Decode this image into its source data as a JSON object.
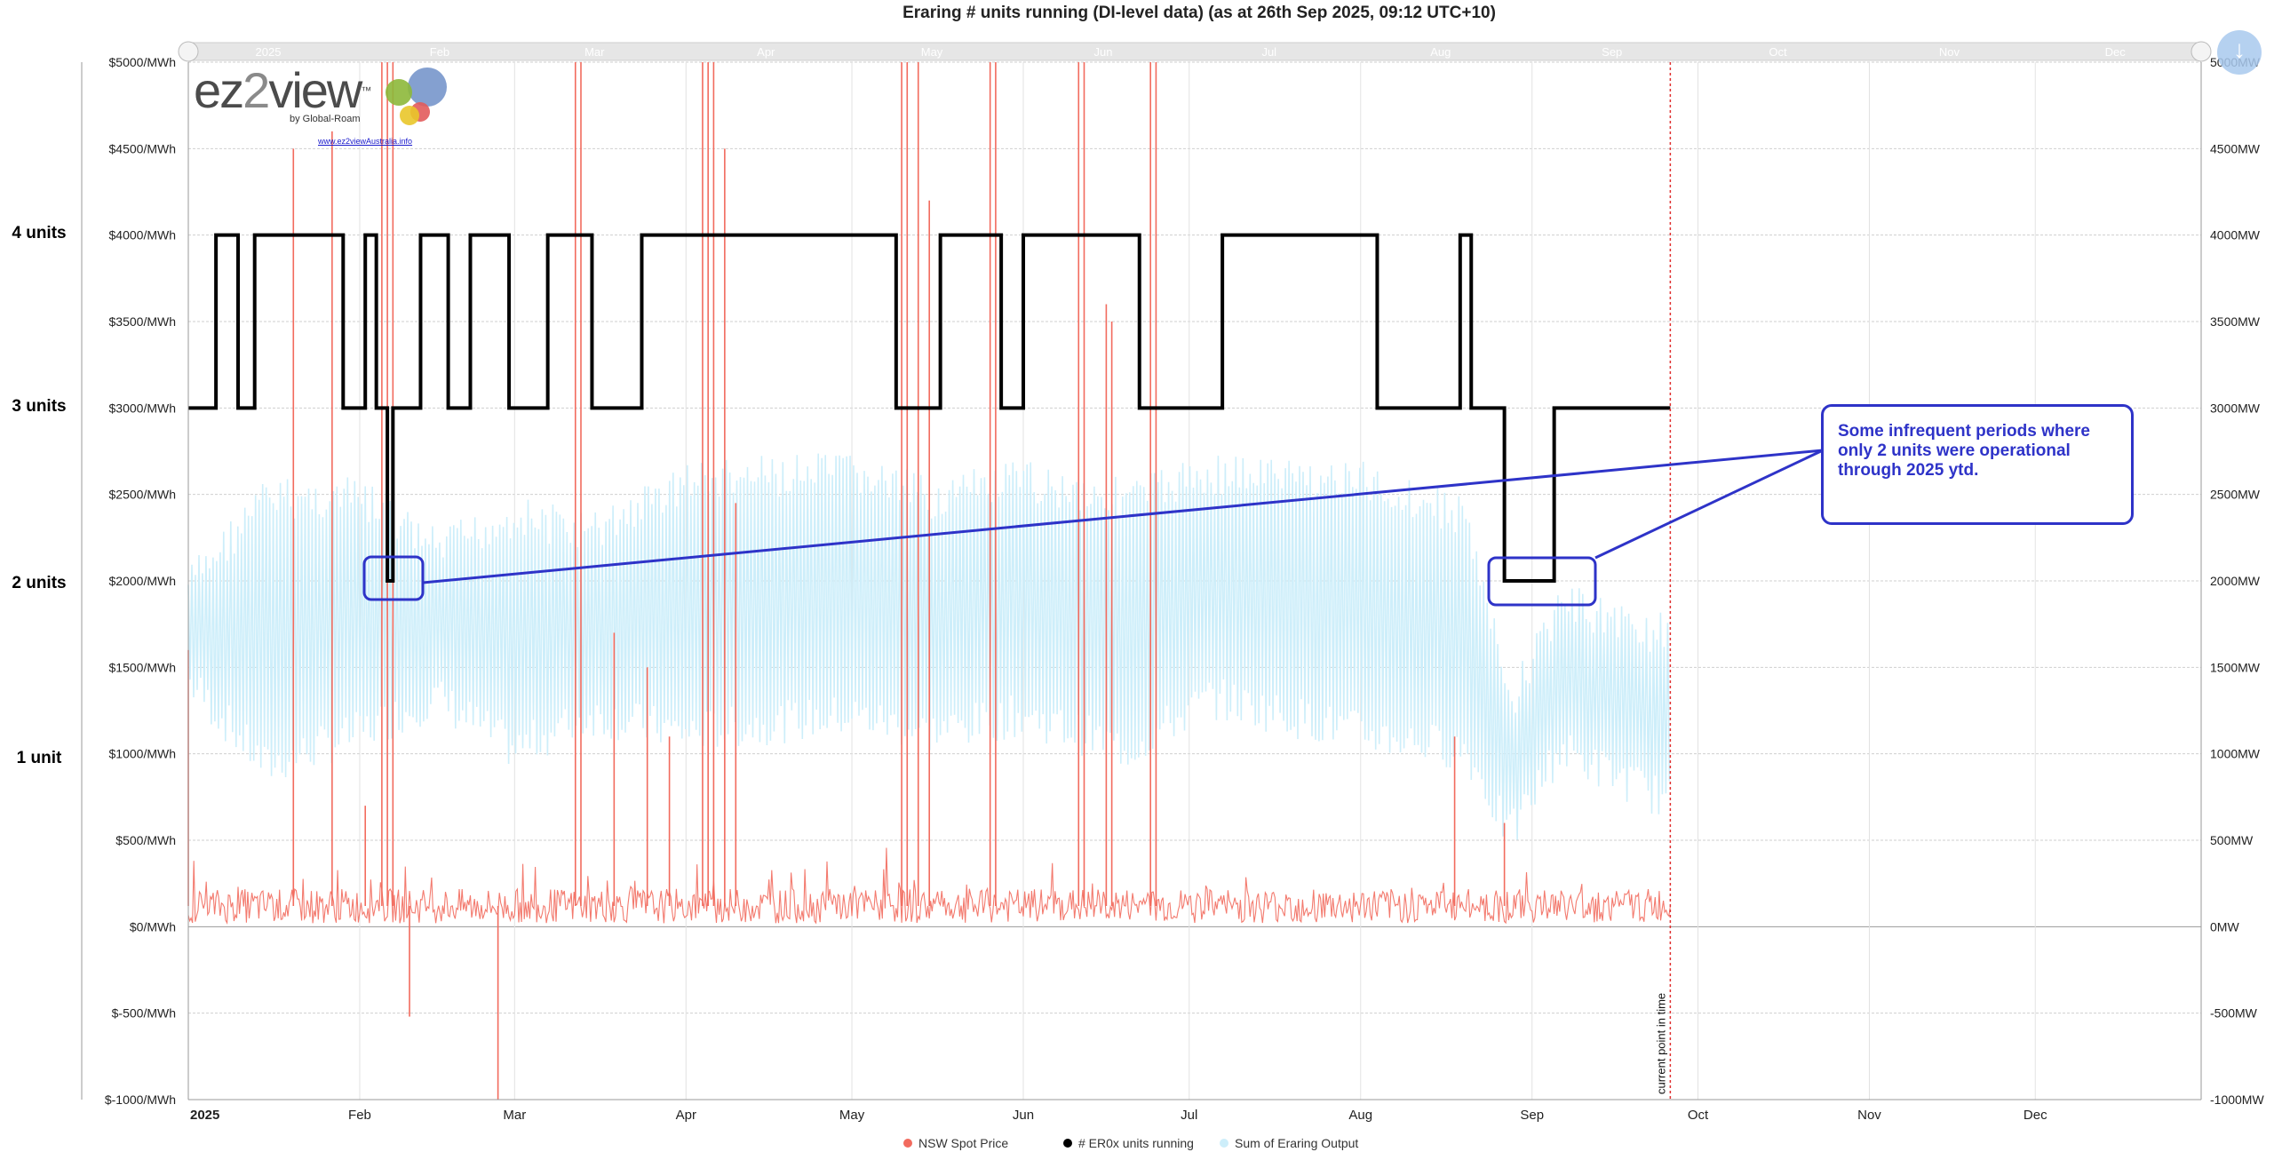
{
  "title": "Eraring # units running (DI-level data) (as at 26th Sep 2025, 09:12 UTC+10)",
  "logo": {
    "brand_a": "ez",
    "brand_b": "2",
    "brand_c": "view",
    "tm": "™",
    "byline": "by Global-Roam",
    "url": "www.ez2viewAustralia.info"
  },
  "left_unit_labels": [
    "4 units",
    "3 units",
    "2 units",
    "1 unit"
  ],
  "callout_text": "Some infrequent periods where only 2 units were operational through 2025 ytd.",
  "current_time_label": "current point in time",
  "colors": {
    "price": "#f26b5e",
    "units": "#000000",
    "output": "#cdeefa",
    "callout": "#2e33c8",
    "current_line": "#e03030"
  },
  "chart_data": {
    "type": "line",
    "title": "Eraring # units running (DI-level data) (as at 26th Sep 2025, 09:12 UTC+10)",
    "x_range": [
      "2025-01-01",
      "2025-12-31"
    ],
    "x_ticks": [
      "2025",
      "Feb",
      "Mar",
      "Apr",
      "May",
      "Jun",
      "Jul",
      "Aug",
      "Sep",
      "Oct",
      "Nov",
      "Dec"
    ],
    "navigator_ticks": [
      "2025",
      "Feb",
      "Mar",
      "Apr",
      "May",
      "Jun",
      "Jul",
      "Aug",
      "Sep",
      "Oct",
      "Nov",
      "Dec"
    ],
    "y_left": {
      "range": [
        -1000,
        5000
      ],
      "ticks": [
        "$-1000/MWh",
        "$-500/MWh",
        "$0/MWh",
        "$500/MWh",
        "$1000/MWh",
        "$1500/MWh",
        "$2000/MWh",
        "$2500/MWh",
        "$3000/MWh",
        "$3500/MWh",
        "$4000/MWh",
        "$4500/MWh",
        "$5000/MWh"
      ]
    },
    "y_right": {
      "range": [
        -1000,
        5000
      ],
      "ticks": [
        "-1000MW",
        "-500MW",
        "0MW",
        "500MW",
        "1000MW",
        "1500MW",
        "2000MW",
        "2500MW",
        "3000MW",
        "3500MW",
        "4000MW",
        "4500MW",
        "5000MW"
      ]
    },
    "grid": true,
    "legend_position": "bottom",
    "current_time": "2025-09-26",
    "series": [
      {
        "name": "NSW Spot Price",
        "units": "$/MWh",
        "baseline": 120,
        "spikes": [
          {
            "date": "2025-01-01",
            "value": 1600
          },
          {
            "date": "2025-01-20",
            "value": 4500
          },
          {
            "date": "2025-01-27",
            "value": 4600
          },
          {
            "date": "2025-02-02",
            "value": 700
          },
          {
            "date": "2025-02-05",
            "value": 5000
          },
          {
            "date": "2025-02-06",
            "value": 5000
          },
          {
            "date": "2025-02-07",
            "value": 5000
          },
          {
            "date": "2025-02-10",
            "value": -520
          },
          {
            "date": "2025-02-26",
            "value": -1000
          },
          {
            "date": "2025-03-12",
            "value": 5000
          },
          {
            "date": "2025-03-13",
            "value": 5000
          },
          {
            "date": "2025-03-19",
            "value": 1700
          },
          {
            "date": "2025-03-25",
            "value": 1500
          },
          {
            "date": "2025-03-29",
            "value": 1100
          },
          {
            "date": "2025-04-04",
            "value": 5000
          },
          {
            "date": "2025-04-05",
            "value": 5000
          },
          {
            "date": "2025-04-06",
            "value": 5000
          },
          {
            "date": "2025-04-08",
            "value": 4500
          },
          {
            "date": "2025-04-10",
            "value": 2450
          },
          {
            "date": "2025-05-10",
            "value": 5000
          },
          {
            "date": "2025-05-11",
            "value": 5000
          },
          {
            "date": "2025-05-13",
            "value": 5000
          },
          {
            "date": "2025-05-15",
            "value": 4200
          },
          {
            "date": "2025-05-26",
            "value": 5000
          },
          {
            "date": "2025-05-27",
            "value": 5000
          },
          {
            "date": "2025-06-11",
            "value": 5000
          },
          {
            "date": "2025-06-12",
            "value": 5000
          },
          {
            "date": "2025-06-16",
            "value": 3600
          },
          {
            "date": "2025-06-17",
            "value": 3500
          },
          {
            "date": "2025-06-24",
            "value": 5000
          },
          {
            "date": "2025-06-25",
            "value": 5000
          },
          {
            "date": "2025-08-18",
            "value": 1100
          },
          {
            "date": "2025-08-27",
            "value": 600
          }
        ]
      },
      {
        "name": "# ER0x units running",
        "units": "units (4 units = 4000)",
        "steps": [
          {
            "date": "2025-01-01",
            "units": 3
          },
          {
            "date": "2025-01-06",
            "units": 4
          },
          {
            "date": "2025-01-10",
            "units": 3
          },
          {
            "date": "2025-01-13",
            "units": 4
          },
          {
            "date": "2025-01-29",
            "units": 3
          },
          {
            "date": "2025-02-02",
            "units": 4
          },
          {
            "date": "2025-02-04",
            "units": 3
          },
          {
            "date": "2025-02-06",
            "units": 2
          },
          {
            "date": "2025-02-07",
            "units": 3
          },
          {
            "date": "2025-02-12",
            "units": 4
          },
          {
            "date": "2025-02-17",
            "units": 3
          },
          {
            "date": "2025-02-21",
            "units": 4
          },
          {
            "date": "2025-02-28",
            "units": 3
          },
          {
            "date": "2025-03-07",
            "units": 4
          },
          {
            "date": "2025-03-15",
            "units": 3
          },
          {
            "date": "2025-03-24",
            "units": 4
          },
          {
            "date": "2025-05-09",
            "units": 3
          },
          {
            "date": "2025-05-17",
            "units": 4
          },
          {
            "date": "2025-05-28",
            "units": 3
          },
          {
            "date": "2025-06-01",
            "units": 4
          },
          {
            "date": "2025-06-22",
            "units": 3
          },
          {
            "date": "2025-07-07",
            "units": 4
          },
          {
            "date": "2025-08-04",
            "units": 3
          },
          {
            "date": "2025-08-19",
            "units": 4
          },
          {
            "date": "2025-08-21",
            "units": 3
          },
          {
            "date": "2025-08-27",
            "units": 2
          },
          {
            "date": "2025-09-05",
            "units": 3
          },
          {
            "date": "2025-09-26",
            "units": 3
          }
        ]
      },
      {
        "name": "Sum of Eraring Output",
        "units": "MW",
        "profile": [
          {
            "date": "2025-01-01",
            "min": 1300,
            "max": 2100
          },
          {
            "date": "2025-01-15",
            "min": 800,
            "max": 2600
          },
          {
            "date": "2025-02-01",
            "min": 1000,
            "max": 2600
          },
          {
            "date": "2025-02-15",
            "min": 1200,
            "max": 2300
          },
          {
            "date": "2025-03-01",
            "min": 900,
            "max": 2500
          },
          {
            "date": "2025-03-15",
            "min": 1100,
            "max": 2400
          },
          {
            "date": "2025-04-01",
            "min": 1000,
            "max": 2700
          },
          {
            "date": "2025-05-01",
            "min": 1100,
            "max": 2750
          },
          {
            "date": "2025-05-15",
            "min": 1000,
            "max": 2600
          },
          {
            "date": "2025-06-01",
            "min": 1100,
            "max": 2700
          },
          {
            "date": "2025-06-20",
            "min": 900,
            "max": 2600
          },
          {
            "date": "2025-07-05",
            "min": 1200,
            "max": 2750
          },
          {
            "date": "2025-08-01",
            "min": 1000,
            "max": 2700
          },
          {
            "date": "2025-08-20",
            "min": 900,
            "max": 2500
          },
          {
            "date": "2025-08-28",
            "min": 400,
            "max": 1400
          },
          {
            "date": "2025-09-06",
            "min": 900,
            "max": 2000
          },
          {
            "date": "2025-09-26",
            "min": 600,
            "max": 1800
          }
        ]
      }
    ]
  }
}
